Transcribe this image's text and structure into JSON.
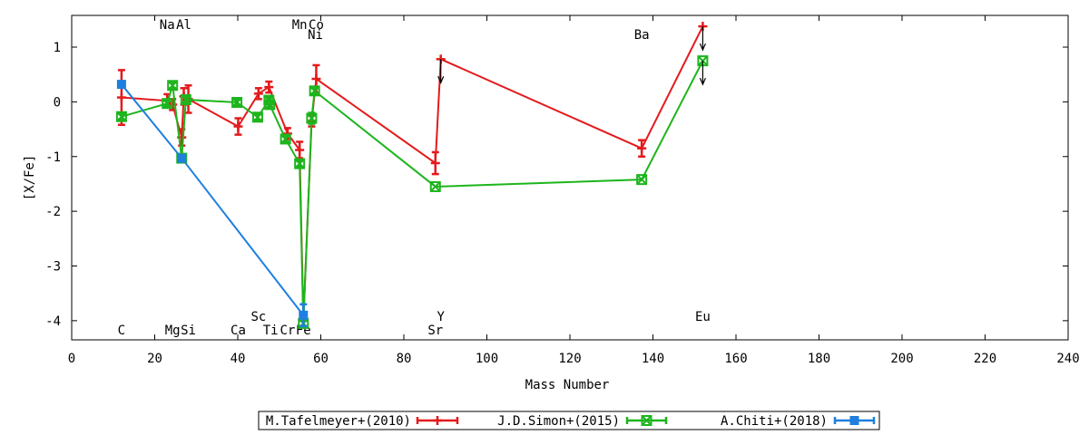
{
  "chart_data": {
    "type": "line",
    "xlabel": "Mass Number",
    "ylabel": "[X/Fe]",
    "xlim": [
      0,
      240
    ],
    "ylim": [
      -4.35,
      1.58
    ],
    "xticks": [
      0,
      20,
      40,
      60,
      80,
      100,
      120,
      140,
      160,
      180,
      200,
      220,
      240
    ],
    "yticks": [
      1,
      0,
      -1,
      -2,
      -3,
      -4
    ],
    "grid": false,
    "legend_position": "bottom-center",
    "element_labels": [
      {
        "text": "C",
        "x": 12,
        "row": "bottom"
      },
      {
        "text": "Na",
        "x": 23,
        "row": "top"
      },
      {
        "text": "Mg",
        "x": 24.3,
        "row": "bottom"
      },
      {
        "text": "Al",
        "x": 27,
        "row": "top"
      },
      {
        "text": "Si",
        "x": 28.1,
        "row": "bottom"
      },
      {
        "text": "Ca",
        "x": 40.1,
        "row": "bottom"
      },
      {
        "text": "Sc",
        "x": 45,
        "row": "bottom2"
      },
      {
        "text": "Ti",
        "x": 47.9,
        "row": "bottom"
      },
      {
        "text": "Cr",
        "x": 52,
        "row": "bottom"
      },
      {
        "text": "Mn",
        "x": 54.9,
        "row": "top"
      },
      {
        "text": "Fe",
        "x": 55.8,
        "row": "bottom"
      },
      {
        "text": "Co",
        "x": 58.9,
        "row": "top"
      },
      {
        "text": "Ni",
        "x": 58.7,
        "row": "top2"
      },
      {
        "text": "Y",
        "x": 88.9,
        "row": "bottom2"
      },
      {
        "text": "Sr",
        "x": 87.6,
        "row": "bottom"
      },
      {
        "text": "Ba",
        "x": 137.3,
        "row": "top2"
      },
      {
        "text": "Eu",
        "x": 152,
        "row": "bottom2"
      }
    ],
    "series": [
      {
        "name": "M.Tafelmeyer+(2010)",
        "color": "#e41a1c",
        "marker": "plus",
        "points": [
          {
            "x": 12.0,
            "y": 0.08,
            "err": 0.5
          },
          {
            "x": 23.0,
            "y": 0.02,
            "err": 0.12
          },
          {
            "x": 24.3,
            "y": -0.05,
            "err": 0.1
          },
          {
            "x": 26.5,
            "y": -0.65,
            "err": 0.15
          },
          {
            "x": 27.0,
            "y": 0.1,
            "err": 0.15
          },
          {
            "x": 28.1,
            "y": 0.05,
            "err": 0.25
          },
          {
            "x": 40.1,
            "y": -0.45,
            "err": 0.15
          },
          {
            "x": 45.0,
            "y": 0.15,
            "err": 0.1
          },
          {
            "x": 47.5,
            "y": 0.27,
            "err": 0.1
          },
          {
            "x": 52.0,
            "y": -0.58,
            "err": 0.1
          },
          {
            "x": 54.9,
            "y": -0.88,
            "err": 0.15
          },
          {
            "x": 55.8,
            "y": -4.0,
            "err": 0.1
          },
          {
            "x": 57.8,
            "y": -0.35,
            "err": 0.1
          },
          {
            "x": 58.9,
            "y": 0.42,
            "err": 0.25
          },
          {
            "x": 87.6,
            "y": -1.12,
            "err": 0.2
          },
          {
            "x": 88.9,
            "y": 0.78,
            "err": 0.0,
            "upper_limit": true
          },
          {
            "x": 137.3,
            "y": -0.85,
            "err": 0.15
          },
          {
            "x": 152.0,
            "y": 1.38,
            "err": 0.0,
            "upper_limit": true
          }
        ]
      },
      {
        "name": "J.D.Simon+(2015)",
        "color": "#1db51d",
        "marker": "cross-box",
        "points": [
          {
            "x": 12.0,
            "y": -0.27,
            "err": 0.05
          },
          {
            "x": 23.0,
            "y": -0.03,
            "err": 0.05
          },
          {
            "x": 24.3,
            "y": 0.3,
            "err": 0.05
          },
          {
            "x": 26.5,
            "y": -1.03,
            "err": 0.05
          },
          {
            "x": 27.5,
            "y": 0.04,
            "err": 0.05
          },
          {
            "x": 39.8,
            "y": -0.01,
            "err": 0.05
          },
          {
            "x": 44.8,
            "y": -0.28,
            "err": 0.05
          },
          {
            "x": 47.5,
            "y": 0.03,
            "err": 0.05
          },
          {
            "x": 47.7,
            "y": -0.05,
            "err": 0.05
          },
          {
            "x": 51.5,
            "y": -0.68,
            "err": 0.05
          },
          {
            "x": 54.9,
            "y": -1.13,
            "err": 0.05
          },
          {
            "x": 55.8,
            "y": -4.05,
            "err": 0.05
          },
          {
            "x": 57.8,
            "y": -0.3,
            "err": 0.1
          },
          {
            "x": 58.5,
            "y": 0.2,
            "err": 0.05
          },
          {
            "x": 87.6,
            "y": -1.55,
            "err": 0.0
          },
          {
            "x": 137.3,
            "y": -1.42,
            "err": 0.0
          },
          {
            "x": 152.0,
            "y": 0.75,
            "err": 0.0,
            "upper_limit": true
          }
        ]
      },
      {
        "name": "A.Chiti+(2018)",
        "color": "#1e7fe0",
        "marker": "box",
        "points": [
          {
            "x": 12.0,
            "y": 0.32,
            "err": 0.0
          },
          {
            "x": 26.5,
            "y": -1.03,
            "err": 0.0
          },
          {
            "x": 55.8,
            "y": -3.9,
            "err": 0.2
          }
        ]
      }
    ]
  }
}
